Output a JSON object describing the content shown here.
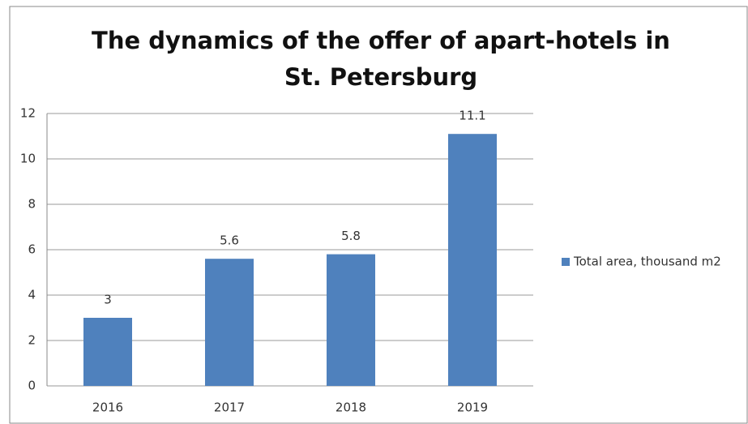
{
  "chart_data": {
    "type": "bar",
    "title": "The dynamics of the offer of apart-hotels in St. Petersburg",
    "categories": [
      "2016",
      "2017",
      "2018",
      "2019"
    ],
    "series": [
      {
        "name": "Total area, thousand m2",
        "color": "#4f81bd",
        "values": [
          3,
          5.6,
          5.8,
          11.1
        ]
      }
    ],
    "ylim": [
      0,
      12
    ],
    "yticks": [
      0,
      2,
      4,
      6,
      8,
      10,
      12
    ],
    "grid": true,
    "legend": "right"
  }
}
